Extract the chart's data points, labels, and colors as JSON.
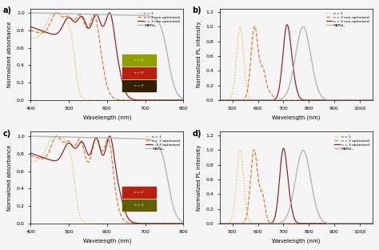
{
  "colors": {
    "n1": "#c8c832",
    "n2_non": "#e07838",
    "n3_non": "#8b2828",
    "MAPbI3": "#b0b0b0",
    "n2_opt": "#e07838",
    "n3_opt": "#8b2828"
  },
  "legend_non": [
    "n = 1",
    "n = 2 non-optimized",
    "n = 3 non-optimized",
    "MAPbI₃"
  ],
  "legend_opt": [
    "n = 1",
    "n = 2 optimized",
    "n = 3 optimized",
    "MAPbI₃"
  ],
  "rect_a": [
    {
      "color": "#8fa000",
      "label": "n = 1"
    },
    {
      "color": "#b82010",
      "label": "n = 2"
    },
    {
      "color": "#302000",
      "label": "n = 3"
    }
  ],
  "rect_c": [
    {
      "color": "#b82010",
      "label": "n = 2"
    },
    {
      "color": "#606000",
      "label": "n = 3"
    }
  ],
  "bg_color": "#f5f5f5"
}
